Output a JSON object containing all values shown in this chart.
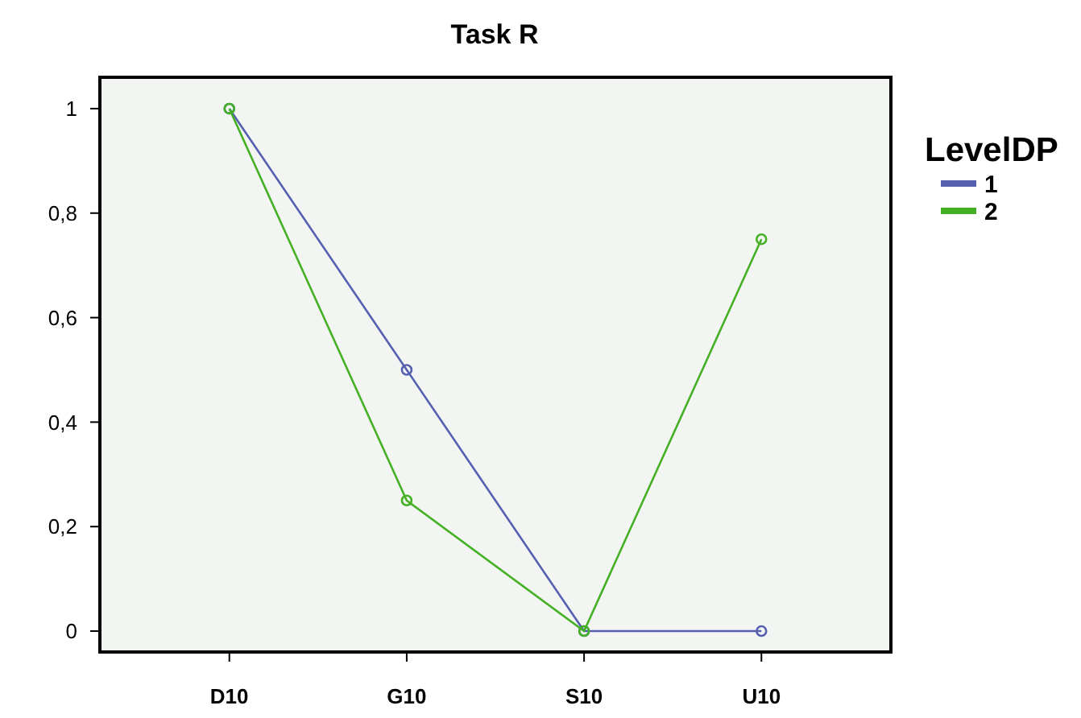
{
  "chart_data": {
    "type": "line",
    "title": "Task R",
    "legend_title": "LevelDP",
    "categories": [
      "D10",
      "G10",
      "S10",
      "U10"
    ],
    "series": [
      {
        "name": "1",
        "color": "#5560b0",
        "values": [
          1,
          0.5,
          0,
          0
        ]
      },
      {
        "name": "2",
        "color": "#44b024",
        "values": [
          1,
          0.25,
          0,
          0.75
        ]
      }
    ],
    "ylim": [
      -0.04,
      1.06
    ],
    "yticks": [
      0,
      {
        "value": 0.2,
        "label": "0,2"
      },
      {
        "value": 0.4,
        "label": "0,4"
      },
      {
        "value": 0.6,
        "label": "0,6"
      },
      {
        "value": 0.8,
        "label": "0,8"
      },
      1
    ],
    "marker": "circle",
    "legend": "right",
    "grid": false
  }
}
